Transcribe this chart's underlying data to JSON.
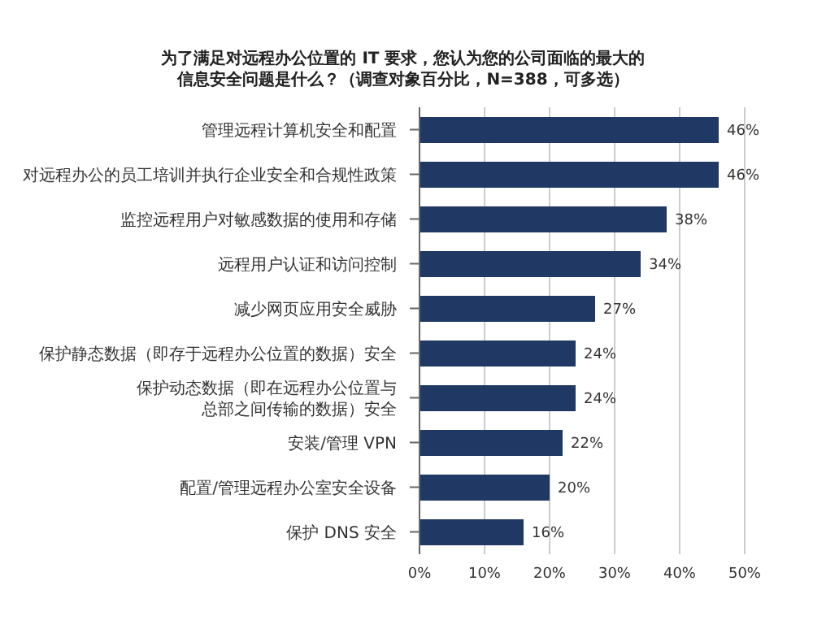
{
  "chart_data": {
    "type": "bar",
    "orientation": "horizontal",
    "title": "为了满足对远程办公位置的 IT 要求，您认为您的公司面临的最大的信息安全问题是什么？（调查对象百分比，N=388，可多选）",
    "categories": [
      "管理远程计算机安全和配置",
      "对远程办公的员工培训并执行企业安全和合规性政策",
      "监控远程用户对敏感数据的使用和存储",
      "远程用户认证和访问控制",
      "减少网页应用安全威胁",
      "保护静态数据（即存于远程办公位置的数据）安全",
      "保护动态数据（即在远程办公位置与总部之间传输的数据）安全",
      "安装/管理 VPN",
      "配置/管理远程办公室安全设备",
      "保护 DNS 安全"
    ],
    "values": [
      46,
      46,
      38,
      34,
      27,
      24,
      24,
      22,
      20,
      16
    ],
    "value_labels": [
      "46%",
      "46%",
      "38%",
      "34%",
      "27%",
      "24%",
      "24%",
      "22%",
      "20%",
      "16%"
    ],
    "color": "#1f3864",
    "xlim": [
      0,
      50
    ],
    "xticks": [
      {
        "value": 0,
        "label": "0%"
      },
      {
        "value": 10,
        "label": "10%"
      },
      {
        "value": 20,
        "label": "20%"
      },
      {
        "value": 30,
        "label": "30%"
      },
      {
        "value": 40,
        "label": "40%"
      },
      {
        "value": 50,
        "label": "50%"
      }
    ],
    "grid": "x",
    "legend": false
  }
}
